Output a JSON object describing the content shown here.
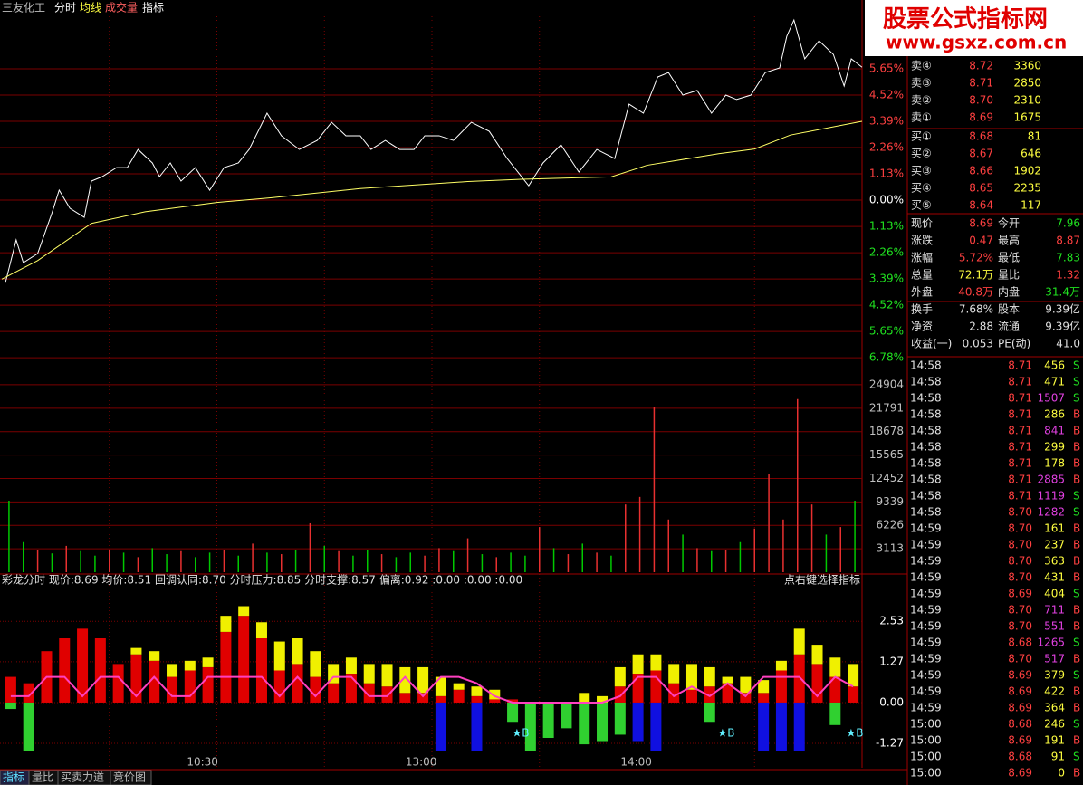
{
  "header": {
    "stock": "三友化工",
    "tabs": [
      "分时",
      "均线",
      "成交量",
      "指标"
    ]
  },
  "watermark": {
    "title": "股票公式指标网",
    "url": "www.gsxz.com.cn"
  },
  "chart_data": [
    {
      "type": "line",
      "xlim": [
        0,
        240
      ],
      "ylim": [
        -7.36,
        7.91
      ],
      "yticks": [
        {
          "value": 5.65,
          "label": "5.65%"
        },
        {
          "value": 4.52,
          "label": "4.52%"
        },
        {
          "value": 3.39,
          "label": "3.39%"
        },
        {
          "value": 2.26,
          "label": "2.26%"
        },
        {
          "value": 1.13,
          "label": "1.13%"
        },
        {
          "value": 0,
          "label": "0.00%"
        },
        {
          "value": -1.13,
          "label": "1.13%"
        },
        {
          "value": -2.26,
          "label": "2.26%"
        },
        {
          "value": -3.39,
          "label": "3.39%"
        },
        {
          "value": -4.52,
          "label": "4.52%"
        },
        {
          "value": -5.65,
          "label": "5.65%"
        },
        {
          "value": -6.78,
          "label": "6.78%"
        }
      ],
      "grid": true,
      "series": [
        {
          "color": "#ffffff",
          "x": [
            1,
            4,
            6,
            10,
            14,
            16,
            19,
            23,
            25,
            28,
            32,
            35,
            38,
            42,
            44,
            47,
            50,
            54,
            58,
            62,
            66,
            69,
            74,
            78,
            83,
            88,
            92,
            96,
            100,
            103,
            107,
            111,
            115,
            118,
            122,
            126,
            131,
            136,
            141,
            147,
            151,
            156,
            161,
            166,
            171,
            175,
            179,
            183,
            186,
            190,
            194,
            198,
            202,
            205,
            209,
            213,
            217,
            219,
            221,
            224,
            228,
            232,
            235,
            237,
            240
          ],
          "values": [
            -3.55,
            -1.71,
            -2.69,
            -2.3,
            -0.55,
            0.43,
            -0.35,
            -0.74,
            0.82,
            1.01,
            1.4,
            1.4,
            2.18,
            1.6,
            1.01,
            1.6,
            0.82,
            1.4,
            0.43,
            1.4,
            1.6,
            2.18,
            3.74,
            2.77,
            2.18,
            2.57,
            3.35,
            2.77,
            2.77,
            2.18,
            2.57,
            2.18,
            2.18,
            2.77,
            2.77,
            2.57,
            3.35,
            2.96,
            1.79,
            0.62,
            1.6,
            2.38,
            1.21,
            2.18,
            1.79,
            4.13,
            3.74,
            5.3,
            5.49,
            4.52,
            4.72,
            3.74,
            4.52,
            4.33,
            4.52,
            5.49,
            5.69,
            7.05,
            7.75,
            6.08,
            6.86,
            6.27,
            4.91,
            6.08,
            5.72
          ]
        },
        {
          "color": "#ffff66",
          "x": [
            0,
            10,
            25,
            40,
            60,
            75,
            100,
            130,
            145,
            170,
            180,
            200,
            210,
            220,
            240
          ],
          "values": [
            -3.4,
            -2.6,
            -1.0,
            -0.5,
            -0.1,
            0.1,
            0.5,
            0.8,
            0.9,
            1.0,
            1.5,
            2.0,
            2.2,
            2.8,
            3.39
          ]
        }
      ]
    },
    {
      "type": "bar",
      "ylim": [
        0,
        26700
      ],
      "yticks": [
        24904,
        21791,
        18678,
        15565,
        12452,
        9339,
        6226,
        3113
      ],
      "grid": true,
      "values": [
        9500,
        4000,
        3000,
        2500,
        3500,
        2800,
        2200,
        3000,
        2600,
        2000,
        3200,
        2400,
        2800,
        2000,
        2600,
        3000,
        2200,
        3800,
        2600,
        2400,
        3000,
        6500,
        3500,
        2800,
        2200,
        3000,
        2400,
        2000,
        2600,
        2200,
        3200,
        2800,
        4500,
        2400,
        2000,
        2600,
        2200,
        6000,
        3200,
        2400,
        3800,
        2600,
        2200,
        9000,
        10000,
        22000,
        7000,
        5000,
        3200,
        2800,
        3000,
        4000,
        5800,
        13000,
        7000,
        23000,
        9000,
        5000,
        6000,
        9500
      ],
      "colors": [
        "#00c800",
        "#00c800",
        "#e83030",
        "#00c800",
        "#e83030",
        "#00c800",
        "#00c800",
        "#e83030",
        "#00c800",
        "#e83030",
        "#00c800",
        "#00c800",
        "#e83030",
        "#00c800",
        "#00c800",
        "#e83030",
        "#00c800",
        "#e83030",
        "#00c800",
        "#e83030",
        "#00c800",
        "#e83030",
        "#00c800",
        "#e83030",
        "#00c800",
        "#00c800",
        "#e83030",
        "#00c800",
        "#00c800",
        "#e83030",
        "#e83030",
        "#00c800",
        "#e83030",
        "#00c800",
        "#e83030",
        "#00c800",
        "#00c800",
        "#e83030",
        "#00c800",
        "#e83030",
        "#00c800",
        "#e83030",
        "#00c800",
        "#e83030",
        "#e83030",
        "#e83030",
        "#e83030",
        "#00c800",
        "#e83030",
        "#00c800",
        "#e83030",
        "#00c800",
        "#e83030",
        "#e83030",
        "#e83030",
        "#e83030",
        "#e83030",
        "#00c800",
        "#e83030",
        "#00c800"
      ]
    },
    {
      "type": "bar",
      "title": "彩龙分时  现价:8.69  均价:8.51  回调认同:8.70  分时压力:8.85  分时支撑:8.57  偏离:0.92  :0.00  :0.00  :0.00",
      "hint": "点右键选择指标",
      "xlim": [
        0,
        240
      ],
      "xticks": [
        {
          "value": 56,
          "label": "10:30"
        },
        {
          "value": 117,
          "label": "13:00"
        },
        {
          "value": 177,
          "label": "14:00"
        }
      ],
      "ylim": [
        -2.03,
        3.55
      ],
      "yticks": [
        2.53,
        1.27,
        {
          "value": 0,
          "label": "0.00"
        },
        -1.27
      ],
      "annotations": [
        "★B",
        "★B",
        "★B"
      ],
      "series": [
        {
          "color": "#e00000",
          "values": [
            0.8,
            0.6,
            1.6,
            2.0,
            2.3,
            2.0,
            1.2,
            1.5,
            1.3,
            0.8,
            1.0,
            1.1,
            2.2,
            2.7,
            2.0,
            1.0,
            1.2,
            0.8,
            0.6,
            0.9,
            0.6,
            0.5,
            0.3,
            0.3,
            0.2,
            0.4,
            0.2,
            0.1,
            0.1,
            0,
            0,
            0,
            0,
            0,
            0.5,
            0.9,
            1.0,
            0.6,
            0.4,
            0.5,
            0.6,
            0.3,
            0.3,
            1.0,
            1.5,
            1.2,
            0.8,
            0.5
          ]
        },
        {
          "color": "#f0f000",
          "stack": true,
          "values": [
            0,
            0,
            0,
            0,
            0,
            0,
            0,
            0.2,
            0.3,
            0.4,
            0.3,
            0.3,
            0.5,
            0.3,
            0.5,
            0.9,
            0.8,
            0.8,
            0.6,
            0.5,
            0.6,
            0.7,
            0.8,
            0.8,
            0.6,
            0.2,
            0.3,
            0.3,
            0,
            0,
            0,
            0,
            0.3,
            0.2,
            0.6,
            0.6,
            0.5,
            0.6,
            0.8,
            0.6,
            0.2,
            0.5,
            0.4,
            0.3,
            0.8,
            0.6,
            0.6,
            0.7
          ]
        },
        {
          "color": "#1010e0",
          "values": [
            0,
            0,
            0,
            0,
            0,
            0,
            0,
            0,
            0,
            0,
            0,
            0,
            0,
            0,
            0,
            0,
            0,
            0,
            0,
            0,
            0,
            0,
            0,
            0,
            -1.5,
            0,
            -1.5,
            0,
            0,
            0,
            0,
            0,
            0,
            0,
            0,
            -1.2,
            -1.5,
            0,
            0,
            0,
            0,
            0,
            -1.5,
            -1.5,
            -1.5,
            0,
            0,
            0
          ]
        },
        {
          "color": "#30d030",
          "values": [
            -0.2,
            -1.5,
            0,
            0,
            0,
            0,
            0,
            0,
            0,
            0,
            0,
            0,
            0,
            0,
            0,
            0,
            0,
            0,
            0,
            0,
            0,
            0,
            0,
            0,
            0,
            0,
            0,
            0,
            -0.6,
            -1.5,
            -1.1,
            -0.8,
            -1.3,
            -1.2,
            -1.0,
            0,
            0,
            0,
            0,
            -0.6,
            0,
            0,
            0,
            0,
            0,
            0,
            -0.7,
            0
          ]
        },
        {
          "color": "#ff40c0",
          "kind": "line",
          "values": [
            0.2,
            0.2,
            0.8,
            0.8,
            0.2,
            0.8,
            0.8,
            0.2,
            0.8,
            0.2,
            0.2,
            0.8,
            0.8,
            0.8,
            0.8,
            0.2,
            0.8,
            0.2,
            0.8,
            0.8,
            0.2,
            0.2,
            0.8,
            0.2,
            0.8,
            0.8,
            0.6,
            0.2,
            0,
            0,
            0,
            0,
            0,
            0,
            0.2,
            0.8,
            0.8,
            0.2,
            0.5,
            0.2,
            0.6,
            0.2,
            0.8,
            0.8,
            0.8,
            0.2,
            0.8,
            0.5
          ]
        }
      ]
    }
  ],
  "right": {
    "sells": [
      [
        "卖④",
        "8.72",
        "3360"
      ],
      [
        "卖③",
        "8.71",
        "2850"
      ],
      [
        "卖②",
        "8.70",
        "2310"
      ],
      [
        "卖①",
        "8.69",
        "1675"
      ]
    ],
    "buys": [
      [
        "买①",
        "8.68",
        "81"
      ],
      [
        "买②",
        "8.67",
        "646"
      ],
      [
        "买③",
        "8.66",
        "1902"
      ],
      [
        "买④",
        "8.65",
        "2235"
      ],
      [
        "买⑤",
        "8.64",
        "117"
      ]
    ],
    "stats": [
      [
        "现价",
        "8.69",
        "今开",
        "7.96"
      ],
      [
        "涨跌",
        "0.47",
        "最高",
        "8.87"
      ],
      [
        "涨幅",
        "5.72%",
        "最低",
        "7.83"
      ],
      [
        "总量",
        "72.1万",
        "量比",
        "1.32"
      ],
      [
        "外盘",
        "40.8万",
        "内盘",
        "31.4万"
      ],
      [
        "换手",
        "7.68%",
        "股本",
        "9.39亿"
      ],
      [
        "净资",
        "2.88",
        "流通",
        "9.39亿"
      ],
      [
        "收益(一)",
        "0.053",
        "PE(动)",
        "41.0"
      ]
    ],
    "trades": [
      [
        "14:58",
        "8.71",
        "456",
        "S"
      ],
      [
        "14:58",
        "8.71",
        "471",
        "S"
      ],
      [
        "14:58",
        "8.71",
        "1507",
        "S"
      ],
      [
        "14:58",
        "8.71",
        "286",
        "B"
      ],
      [
        "14:58",
        "8.71",
        "841",
        "B"
      ],
      [
        "14:58",
        "8.71",
        "299",
        "B"
      ],
      [
        "14:58",
        "8.71",
        "178",
        "B"
      ],
      [
        "14:58",
        "8.71",
        "2885",
        "B"
      ],
      [
        "14:58",
        "8.71",
        "1119",
        "S"
      ],
      [
        "14:58",
        "8.70",
        "1282",
        "S"
      ],
      [
        "14:59",
        "8.70",
        "161",
        "B"
      ],
      [
        "14:59",
        "8.70",
        "237",
        "B"
      ],
      [
        "14:59",
        "8.70",
        "363",
        "B"
      ],
      [
        "14:59",
        "8.70",
        "431",
        "B"
      ],
      [
        "14:59",
        "8.69",
        "404",
        "S"
      ],
      [
        "14:59",
        "8.70",
        "711",
        "B"
      ],
      [
        "14:59",
        "8.70",
        "551",
        "B"
      ],
      [
        "14:59",
        "8.68",
        "1265",
        "S"
      ],
      [
        "14:59",
        "8.70",
        "517",
        "B"
      ],
      [
        "14:59",
        "8.69",
        "379",
        "S"
      ],
      [
        "14:59",
        "8.69",
        "422",
        "B"
      ],
      [
        "14:59",
        "8.69",
        "364",
        "B"
      ],
      [
        "15:00",
        "8.68",
        "246",
        "S"
      ],
      [
        "15:00",
        "8.69",
        "191",
        "B"
      ],
      [
        "15:00",
        "8.68",
        "91",
        "S"
      ],
      [
        "15:00",
        "8.69",
        "0",
        "B"
      ]
    ]
  },
  "footer": {
    "tabs": [
      "指标",
      "量比",
      "买卖力道",
      "竞价图"
    ]
  }
}
